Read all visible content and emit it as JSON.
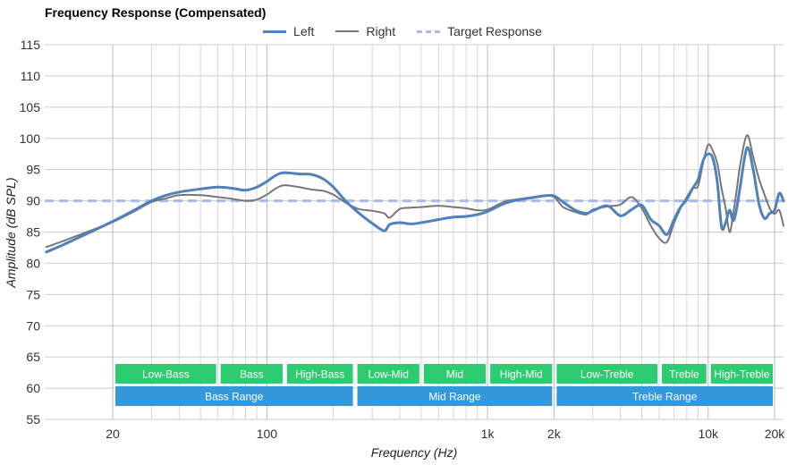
{
  "chart_data": {
    "type": "line",
    "title": "Frequency Response (Compensated)",
    "xlabel": "Frequency (Hz)",
    "ylabel": "Amplitude (dB SPL)",
    "x_scale": "log",
    "xlim": [
      10,
      22000
    ],
    "ylim": [
      55,
      115
    ],
    "grid": true,
    "legend_position": "top-center",
    "y_ticks": [
      55,
      60,
      65,
      70,
      75,
      80,
      85,
      90,
      95,
      100,
      105,
      110,
      115
    ],
    "x_ticks": [
      {
        "value": 20,
        "label": "20"
      },
      {
        "value": 100,
        "label": "100"
      },
      {
        "value": 1000,
        "label": "1k"
      },
      {
        "value": 2000,
        "label": "2k"
      },
      {
        "value": 10000,
        "label": "10k"
      },
      {
        "value": 20000,
        "label": "20k"
      }
    ],
    "series": [
      {
        "name": "Left",
        "color": "#4f81bd",
        "style": "solid",
        "points": [
          [
            10,
            81.8
          ],
          [
            12,
            83.0
          ],
          [
            15,
            84.6
          ],
          [
            20,
            86.7
          ],
          [
            25,
            88.5
          ],
          [
            30,
            90.0
          ],
          [
            35,
            90.9
          ],
          [
            40,
            91.4
          ],
          [
            50,
            91.9
          ],
          [
            60,
            92.2
          ],
          [
            70,
            92.0
          ],
          [
            80,
            91.7
          ],
          [
            90,
            92.2
          ],
          [
            100,
            93.1
          ],
          [
            110,
            94.1
          ],
          [
            120,
            94.5
          ],
          [
            140,
            94.3
          ],
          [
            160,
            94.2
          ],
          [
            180,
            93.5
          ],
          [
            200,
            92.2
          ],
          [
            230,
            89.8
          ],
          [
            260,
            88.1
          ],
          [
            300,
            86.4
          ],
          [
            340,
            85.2
          ],
          [
            360,
            86.2
          ],
          [
            400,
            86.5
          ],
          [
            450,
            86.3
          ],
          [
            500,
            86.5
          ],
          [
            600,
            87.0
          ],
          [
            700,
            87.4
          ],
          [
            800,
            87.5
          ],
          [
            900,
            87.8
          ],
          [
            1000,
            88.3
          ],
          [
            1200,
            89.6
          ],
          [
            1400,
            90.2
          ],
          [
            1600,
            90.5
          ],
          [
            1800,
            90.8
          ],
          [
            2000,
            90.8
          ],
          [
            2200,
            89.8
          ],
          [
            2500,
            88.5
          ],
          [
            2800,
            88.0
          ],
          [
            3000,
            88.4
          ],
          [
            3500,
            89.2
          ],
          [
            4000,
            87.6
          ],
          [
            4500,
            88.6
          ],
          [
            5000,
            89.3
          ],
          [
            5500,
            87.0
          ],
          [
            6000,
            86.0
          ],
          [
            6500,
            84.6
          ],
          [
            7000,
            87.0
          ],
          [
            7500,
            89.0
          ],
          [
            8000,
            90.2
          ],
          [
            8500,
            92.0
          ],
          [
            9000,
            93.4
          ],
          [
            9500,
            96.5
          ],
          [
            10000,
            97.5
          ],
          [
            10500,
            96.8
          ],
          [
            11000,
            93.0
          ],
          [
            11500,
            85.8
          ],
          [
            12000,
            86.5
          ],
          [
            12500,
            88.5
          ],
          [
            13000,
            86.8
          ],
          [
            13500,
            89.0
          ],
          [
            14000,
            92.5
          ],
          [
            15000,
            98.5
          ],
          [
            16000,
            95.0
          ],
          [
            17000,
            89.5
          ],
          [
            18000,
            87.2
          ],
          [
            19000,
            88.0
          ],
          [
            20000,
            88.5
          ],
          [
            21000,
            91.2
          ],
          [
            22000,
            90.0
          ]
        ]
      },
      {
        "name": "Right",
        "color": "#777777",
        "style": "solid",
        "points": [
          [
            10,
            82.6
          ],
          [
            12,
            83.6
          ],
          [
            15,
            84.9
          ],
          [
            20,
            86.6
          ],
          [
            25,
            88.3
          ],
          [
            30,
            89.8
          ],
          [
            35,
            90.4
          ],
          [
            40,
            90.9
          ],
          [
            50,
            90.9
          ],
          [
            60,
            90.6
          ],
          [
            70,
            90.3
          ],
          [
            80,
            90.0
          ],
          [
            90,
            90.2
          ],
          [
            100,
            91.0
          ],
          [
            110,
            92.0
          ],
          [
            120,
            92.5
          ],
          [
            140,
            92.2
          ],
          [
            160,
            91.8
          ],
          [
            180,
            91.6
          ],
          [
            200,
            91.0
          ],
          [
            230,
            89.6
          ],
          [
            260,
            88.7
          ],
          [
            300,
            88.4
          ],
          [
            340,
            88.0
          ],
          [
            360,
            87.3
          ],
          [
            400,
            88.7
          ],
          [
            450,
            88.9
          ],
          [
            500,
            89.0
          ],
          [
            600,
            89.2
          ],
          [
            700,
            89.0
          ],
          [
            800,
            88.8
          ],
          [
            900,
            88.5
          ],
          [
            1000,
            88.6
          ],
          [
            1200,
            89.9
          ],
          [
            1400,
            90.3
          ],
          [
            1600,
            90.6
          ],
          [
            1800,
            90.8
          ],
          [
            2000,
            90.6
          ],
          [
            2200,
            89.0
          ],
          [
            2500,
            88.2
          ],
          [
            2800,
            87.8
          ],
          [
            3000,
            88.6
          ],
          [
            3500,
            89.1
          ],
          [
            4000,
            89.4
          ],
          [
            4500,
            90.6
          ],
          [
            5000,
            88.8
          ],
          [
            5500,
            86.0
          ],
          [
            6000,
            84.0
          ],
          [
            6500,
            83.4
          ],
          [
            7000,
            86.4
          ],
          [
            7500,
            88.8
          ],
          [
            8000,
            90.6
          ],
          [
            8500,
            92.0
          ],
          [
            9000,
            92.4
          ],
          [
            9500,
            96.2
          ],
          [
            10000,
            99.0
          ],
          [
            10500,
            98.0
          ],
          [
            11000,
            96.0
          ],
          [
            11500,
            92.0
          ],
          [
            12000,
            88.8
          ],
          [
            12500,
            85.0
          ],
          [
            13000,
            88.0
          ],
          [
            13500,
            92.0
          ],
          [
            14000,
            96.0
          ],
          [
            15000,
            100.5
          ],
          [
            16000,
            97.0
          ],
          [
            17000,
            93.5
          ],
          [
            18000,
            91.0
          ],
          [
            19000,
            88.8
          ],
          [
            20000,
            87.9
          ],
          [
            21000,
            88.5
          ],
          [
            22000,
            86.0
          ]
        ]
      },
      {
        "name": "Target Response",
        "color": "#aab8f2",
        "style": "dashed",
        "points": [
          [
            10,
            90
          ],
          [
            22000,
            90
          ]
        ]
      }
    ],
    "bands": [
      {
        "label": "Low-Bass",
        "from": 20,
        "to": 60,
        "row": 1,
        "color": "#2ecc71"
      },
      {
        "label": "Bass",
        "from": 60,
        "to": 120,
        "row": 1,
        "color": "#2ecc71"
      },
      {
        "label": "High-Bass",
        "from": 120,
        "to": 250,
        "row": 1,
        "color": "#2ecc71"
      },
      {
        "label": "Low-Mid",
        "from": 250,
        "to": 500,
        "row": 1,
        "color": "#2ecc71"
      },
      {
        "label": "Mid",
        "from": 500,
        "to": 1000,
        "row": 1,
        "color": "#2ecc71"
      },
      {
        "label": "High-Mid",
        "from": 1000,
        "to": 2000,
        "row": 1,
        "color": "#2ecc71"
      },
      {
        "label": "Low-Treble",
        "from": 2000,
        "to": 6000,
        "row": 1,
        "color": "#2ecc71"
      },
      {
        "label": "Treble",
        "from": 6000,
        "to": 10000,
        "row": 1,
        "color": "#2ecc71"
      },
      {
        "label": "High-Treble",
        "from": 10000,
        "to": 20000,
        "row": 1,
        "color": "#2ecc71"
      },
      {
        "label": "Bass Range",
        "from": 20,
        "to": 250,
        "row": 2,
        "color": "#3598db"
      },
      {
        "label": "Mid Range",
        "from": 250,
        "to": 2000,
        "row": 2,
        "color": "#3598db"
      },
      {
        "label": "Treble Range",
        "from": 2000,
        "to": 20000,
        "row": 2,
        "color": "#3598db"
      }
    ]
  }
}
